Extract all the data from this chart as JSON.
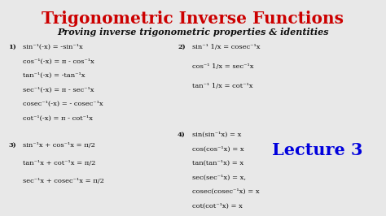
{
  "title": "Trigonometric Inverse Functions",
  "subtitle": "Proving inverse trigonometric properties & identities",
  "bg_color": "#e8e8e8",
  "title_color": "#cc0000",
  "body_color": "#111111",
  "lecture_color": "#0000dd",
  "section1_lines": [
    "sin⁻¹(-x) = -sin⁻¹x",
    "cos⁻¹(-x) = π - cos⁻¹x",
    "tan⁻¹(-x) = -tan⁻¹x",
    "sec⁻¹(-x) = π - sec⁻¹x",
    "cosec⁻¹(-x) = - cosec⁻¹x",
    "cot⁻¹(-x) = π - cot⁻¹x"
  ],
  "section2_lines_left": [
    "sin⁻¹ 1/x = cosec⁻¹x",
    "cos⁻¹ 1/x = sec⁻¹x",
    "tan⁻¹ 1/x = cot⁻¹x"
  ],
  "section3_lines": [
    "sin⁻¹x + cos⁻¹x = π/2",
    "tan⁻¹x + cot⁻¹x = π/2",
    "sec⁻¹x + cosec⁻¹x = π/2"
  ],
  "section4_lines": [
    "sin(sin⁻¹x) = x",
    "cos(cos⁻¹x) = x",
    "tan(tan⁻¹x) = x",
    "sec(sec⁻¹x) = x,",
    "cosec(cosec⁻¹x) = x",
    "cot(cot⁻¹x) = x"
  ],
  "lecture_text": "Lecture 3",
  "figwidth": 4.74,
  "figheight": 2.66,
  "dpi": 100
}
